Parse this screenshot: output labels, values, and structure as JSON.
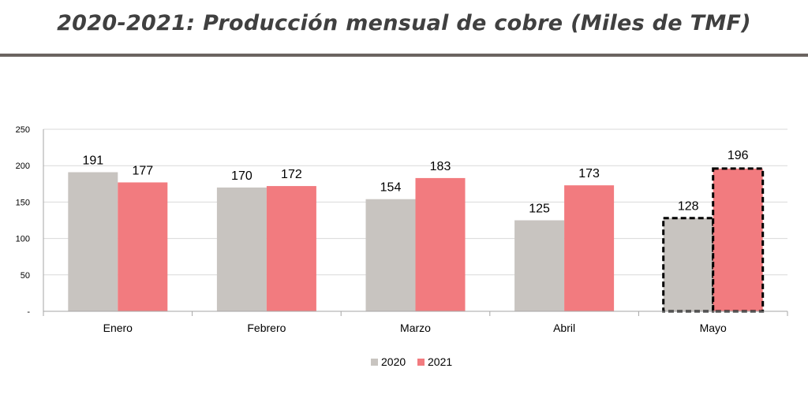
{
  "header": {
    "title": "2020-2021: Producción mensual de cobre (Miles de TMF)"
  },
  "colors": {
    "series_2020": "#c8c4c0",
    "series_2021": "#f27b7f",
    "title": "#404040",
    "rule": "#6b6460",
    "grid": "#d9d9d9"
  },
  "chart_data": {
    "type": "bar",
    "title": "2020-2021: Producción mensual de cobre (Miles de TMF)",
    "categories": [
      "Enero",
      "Febrero",
      "Marzo",
      "Abril",
      "Mayo"
    ],
    "series": [
      {
        "name": "2020",
        "values": [
          191,
          170,
          154,
          125,
          128
        ]
      },
      {
        "name": "2021",
        "values": [
          177,
          172,
          183,
          173,
          196
        ]
      }
    ],
    "yticks": [
      "-",
      "50",
      "100",
      "150",
      "200",
      "250"
    ],
    "ylim": [
      0,
      250
    ],
    "grid": true,
    "legend": "bottom-center",
    "highlighted_category": "Mayo",
    "data_labels": true
  }
}
